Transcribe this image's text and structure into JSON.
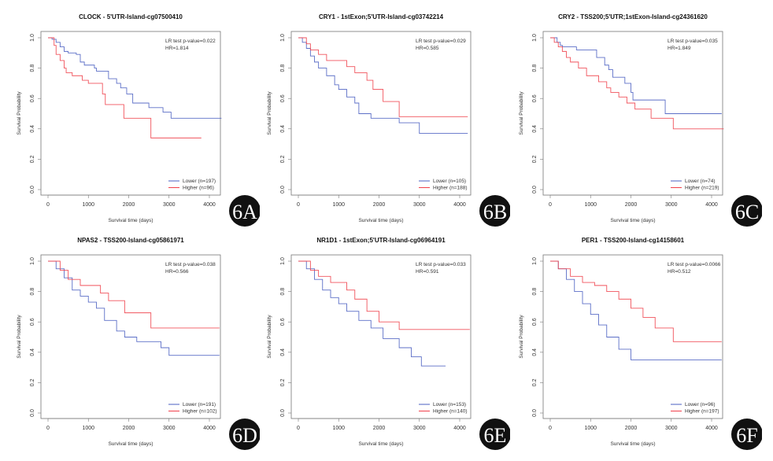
{
  "chart_data": [
    {
      "id": "6A",
      "type": "line",
      "title": "CLOCK - 5'UTR-Island-cg07500410",
      "xlabel": "Survival time (days)",
      "ylabel": "Survival Probability",
      "xticks": [
        "0",
        "1000",
        "2000",
        "3000",
        "4000"
      ],
      "yticks": [
        "0.0",
        "0.2",
        "0.4",
        "0.6",
        "0.8",
        "1.0"
      ],
      "xlim": [
        0,
        4300
      ],
      "ylim": [
        0,
        1
      ],
      "stat1": "LR test p-value=0.022",
      "stat2": "HR=1.814",
      "legend": "bottom-right",
      "series": [
        {
          "name": "Lower (n=197)",
          "color": "#4a5fc1",
          "points": [
            [
              0,
              1
            ],
            [
              100,
              0.99
            ],
            [
              200,
              0.97
            ],
            [
              300,
              0.94
            ],
            [
              400,
              0.91
            ],
            [
              500,
              0.9
            ],
            [
              700,
              0.89
            ],
            [
              800,
              0.84
            ],
            [
              900,
              0.82
            ],
            [
              1150,
              0.8
            ],
            [
              1200,
              0.78
            ],
            [
              1500,
              0.73
            ],
            [
              1700,
              0.7
            ],
            [
              1800,
              0.67
            ],
            [
              1950,
              0.63
            ],
            [
              2100,
              0.57
            ],
            [
              2500,
              0.54
            ],
            [
              2850,
              0.51
            ],
            [
              3050,
              0.47
            ],
            [
              4300,
              0.47
            ]
          ]
        },
        {
          "name": "Higher (n=96)",
          "color": "#f0404a",
          "points": [
            [
              0,
              1
            ],
            [
              150,
              0.95
            ],
            [
              200,
              0.89
            ],
            [
              300,
              0.85
            ],
            [
              400,
              0.8
            ],
            [
              450,
              0.77
            ],
            [
              600,
              0.75
            ],
            [
              850,
              0.72
            ],
            [
              1000,
              0.7
            ],
            [
              1350,
              0.63
            ],
            [
              1420,
              0.56
            ],
            [
              1880,
              0.47
            ],
            [
              2550,
              0.34
            ],
            [
              3800,
              0.34
            ]
          ]
        }
      ]
    },
    {
      "id": "6B",
      "type": "line",
      "title": "CRY1 - 1stExon;5'UTR-Island-cg03742214",
      "xlabel": "Survival time (days)",
      "ylabel": "Survival Probability",
      "xticks": [
        "0",
        "1000",
        "2000",
        "3000",
        "4000"
      ],
      "yticks": [
        "0.0",
        "0.2",
        "0.4",
        "0.6",
        "0.8",
        "1.0"
      ],
      "xlim": [
        0,
        4300
      ],
      "ylim": [
        0,
        1
      ],
      "stat1": "LR test p-value=0.029",
      "stat2": "HR=0.585",
      "legend": "bottom-right",
      "series": [
        {
          "name": "Lower (n=105)",
          "color": "#4a5fc1",
          "points": [
            [
              0,
              1
            ],
            [
              100,
              0.97
            ],
            [
              200,
              0.93
            ],
            [
              300,
              0.88
            ],
            [
              400,
              0.84
            ],
            [
              500,
              0.8
            ],
            [
              700,
              0.75
            ],
            [
              900,
              0.69
            ],
            [
              1000,
              0.66
            ],
            [
              1200,
              0.61
            ],
            [
              1400,
              0.57
            ],
            [
              1500,
              0.5
            ],
            [
              1800,
              0.47
            ],
            [
              2500,
              0.44
            ],
            [
              3000,
              0.37
            ],
            [
              4200,
              0.37
            ]
          ]
        },
        {
          "name": "Higher (n=188)",
          "color": "#f0404a",
          "points": [
            [
              0,
              1
            ],
            [
              200,
              0.96
            ],
            [
              300,
              0.92
            ],
            [
              500,
              0.89
            ],
            [
              700,
              0.85
            ],
            [
              1200,
              0.81
            ],
            [
              1400,
              0.77
            ],
            [
              1700,
              0.72
            ],
            [
              1850,
              0.66
            ],
            [
              2100,
              0.58
            ],
            [
              2500,
              0.48
            ],
            [
              4200,
              0.48
            ]
          ]
        }
      ]
    },
    {
      "id": "6C",
      "type": "line",
      "title": "CRY2 - TSS200;5'UTR;1stExon-Island-cg24361620",
      "xlabel": "Survival time (days)",
      "ylabel": "Survival Probability",
      "xticks": [
        "0",
        "1000",
        "2000",
        "3000",
        "4000"
      ],
      "yticks": [
        "0.0",
        "0.2",
        "0.4",
        "0.6",
        "0.8",
        "1.0"
      ],
      "xlim": [
        0,
        4300
      ],
      "ylim": [
        0,
        1
      ],
      "stat1": "LR test p-value=0.035",
      "stat2": "HR=1.849",
      "legend": "bottom-right",
      "series": [
        {
          "name": "Lower (n=74)",
          "color": "#4a5fc1",
          "points": [
            [
              0,
              1
            ],
            [
              170,
              0.97
            ],
            [
              250,
              0.95
            ],
            [
              300,
              0.94
            ],
            [
              650,
              0.92
            ],
            [
              1150,
              0.87
            ],
            [
              1350,
              0.82
            ],
            [
              1450,
              0.79
            ],
            [
              1550,
              0.74
            ],
            [
              1850,
              0.7
            ],
            [
              2000,
              0.64
            ],
            [
              2050,
              0.59
            ],
            [
              2850,
              0.5
            ],
            [
              4250,
              0.5
            ]
          ]
        },
        {
          "name": "Higher (n=219)",
          "color": "#f0404a",
          "points": [
            [
              0,
              1
            ],
            [
              100,
              0.97
            ],
            [
              200,
              0.94
            ],
            [
              300,
              0.91
            ],
            [
              400,
              0.87
            ],
            [
              500,
              0.84
            ],
            [
              700,
              0.8
            ],
            [
              900,
              0.75
            ],
            [
              1200,
              0.71
            ],
            [
              1400,
              0.67
            ],
            [
              1500,
              0.64
            ],
            [
              1700,
              0.61
            ],
            [
              1900,
              0.57
            ],
            [
              2100,
              0.53
            ],
            [
              2500,
              0.47
            ],
            [
              3050,
              0.4
            ],
            [
              4300,
              0.4
            ]
          ]
        }
      ]
    },
    {
      "id": "6D",
      "type": "line",
      "title": "NPAS2 - TSS200-Island-cg05861971",
      "xlabel": "Survival time (days)",
      "ylabel": "Survival Probability",
      "xticks": [
        "0",
        "1000",
        "2000",
        "3000",
        "4000"
      ],
      "yticks": [
        "0.0",
        "0.2",
        "0.4",
        "0.6",
        "0.8",
        "1.0"
      ],
      "xlim": [
        0,
        4300
      ],
      "ylim": [
        0,
        1
      ],
      "stat1": "LR test p-value=0.038",
      "stat2": "HR=0.566",
      "legend": "bottom-right",
      "series": [
        {
          "name": "Lower (n=191)",
          "color": "#4a5fc1",
          "points": [
            [
              0,
              1
            ],
            [
              200,
              0.95
            ],
            [
              400,
              0.89
            ],
            [
              600,
              0.81
            ],
            [
              800,
              0.77
            ],
            [
              1000,
              0.73
            ],
            [
              1200,
              0.69
            ],
            [
              1400,
              0.61
            ],
            [
              1700,
              0.54
            ],
            [
              1900,
              0.5
            ],
            [
              2200,
              0.47
            ],
            [
              2800,
              0.43
            ],
            [
              3000,
              0.38
            ],
            [
              4250,
              0.38
            ]
          ]
        },
        {
          "name": "Higher (n=102)",
          "color": "#f0404a",
          "points": [
            [
              0,
              1
            ],
            [
              300,
              0.94
            ],
            [
              500,
              0.88
            ],
            [
              800,
              0.84
            ],
            [
              1300,
              0.79
            ],
            [
              1500,
              0.74
            ],
            [
              1900,
              0.66
            ],
            [
              2550,
              0.56
            ],
            [
              4250,
              0.56
            ]
          ]
        }
      ]
    },
    {
      "id": "6E",
      "type": "line",
      "title": "NR1D1 - 1stExon;5'UTR-Island-cg06964191",
      "xlabel": "Survival time (days)",
      "ylabel": "Survival Probability",
      "xticks": [
        "0",
        "1000",
        "2000",
        "3000",
        "4000"
      ],
      "yticks": [
        "0.0",
        "0.2",
        "0.4",
        "0.6",
        "0.8",
        "1.0"
      ],
      "xlim": [
        0,
        4300
      ],
      "ylim": [
        0,
        1
      ],
      "stat1": "LR test p-value=0.033",
      "stat2": "HR=0.591",
      "legend": "bottom-right",
      "series": [
        {
          "name": "Lower (n=153)",
          "color": "#4a5fc1",
          "points": [
            [
              0,
              1
            ],
            [
              200,
              0.95
            ],
            [
              400,
              0.88
            ],
            [
              600,
              0.81
            ],
            [
              800,
              0.76
            ],
            [
              1000,
              0.72
            ],
            [
              1200,
              0.67
            ],
            [
              1500,
              0.61
            ],
            [
              1800,
              0.56
            ],
            [
              2100,
              0.49
            ],
            [
              2500,
              0.43
            ],
            [
              2800,
              0.37
            ],
            [
              3050,
              0.31
            ],
            [
              3650,
              0.31
            ]
          ]
        },
        {
          "name": "Higher (n=140)",
          "color": "#f0404a",
          "points": [
            [
              0,
              1
            ],
            [
              300,
              0.94
            ],
            [
              500,
              0.9
            ],
            [
              800,
              0.86
            ],
            [
              1200,
              0.81
            ],
            [
              1400,
              0.75
            ],
            [
              1700,
              0.67
            ],
            [
              2000,
              0.6
            ],
            [
              2500,
              0.55
            ],
            [
              4250,
              0.55
            ]
          ]
        }
      ]
    },
    {
      "id": "6F",
      "type": "line",
      "title": "PER1 - TSS200-Island-cg14158601",
      "xlabel": "Survival time (days)",
      "ylabel": "Survival Probability",
      "xticks": [
        "0",
        "1000",
        "2000",
        "3000",
        "4000"
      ],
      "yticks": [
        "0.0",
        "0.2",
        "0.4",
        "0.6",
        "0.8",
        "1.0"
      ],
      "xlim": [
        0,
        4300
      ],
      "ylim": [
        0,
        1
      ],
      "stat1": "LR test p-value=0.0066",
      "stat2": "HR=0.512",
      "legend": "bottom-right",
      "series": [
        {
          "name": "Lower (n=96)",
          "color": "#4a5fc1",
          "points": [
            [
              0,
              1
            ],
            [
              200,
              0.95
            ],
            [
              400,
              0.88
            ],
            [
              600,
              0.8
            ],
            [
              800,
              0.72
            ],
            [
              1000,
              0.65
            ],
            [
              1200,
              0.58
            ],
            [
              1400,
              0.5
            ],
            [
              1700,
              0.42
            ],
            [
              2000,
              0.35
            ],
            [
              4250,
              0.35
            ]
          ]
        },
        {
          "name": "Higher (n=197)",
          "color": "#f0404a",
          "points": [
            [
              0,
              1
            ],
            [
              200,
              0.95
            ],
            [
              500,
              0.9
            ],
            [
              800,
              0.86
            ],
            [
              1100,
              0.84
            ],
            [
              1400,
              0.8
            ],
            [
              1700,
              0.75
            ],
            [
              2000,
              0.69
            ],
            [
              2300,
              0.63
            ],
            [
              2600,
              0.56
            ],
            [
              3050,
              0.47
            ],
            [
              4250,
              0.47
            ]
          ]
        }
      ]
    }
  ]
}
